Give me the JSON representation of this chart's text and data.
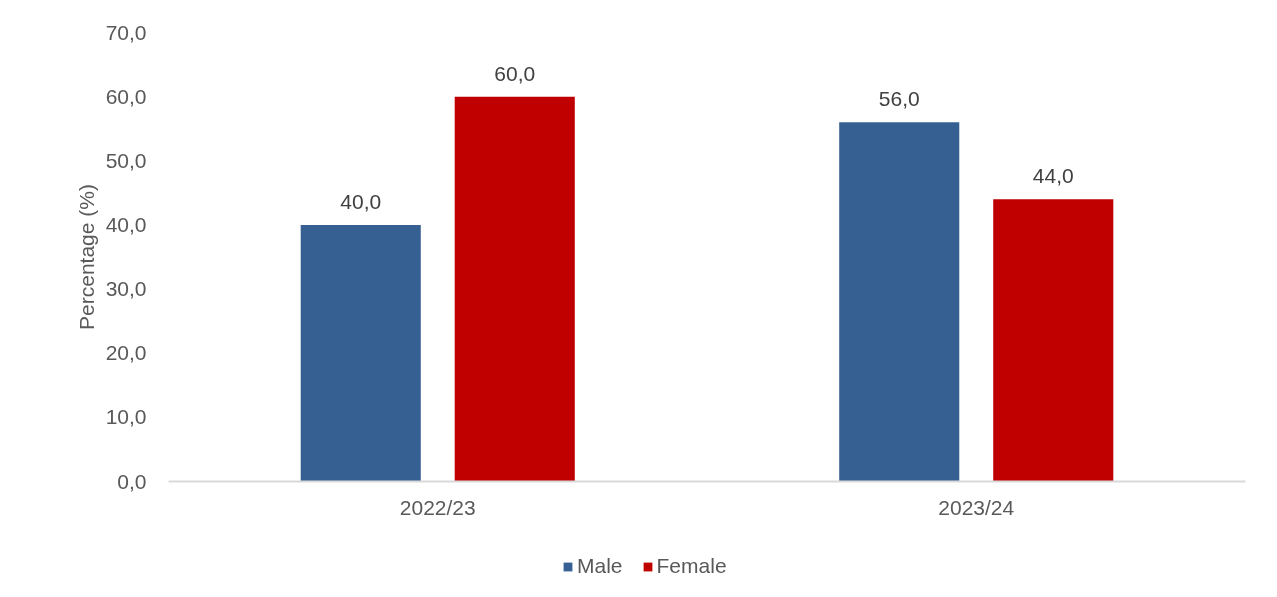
{
  "chart_data": {
    "type": "bar",
    "ylabel": "Percentage (%)",
    "categories": [
      "2022/23",
      "2023/24"
    ],
    "series": [
      {
        "name": "Male",
        "color": "#376092",
        "values": [
          40,
          56
        ],
        "value_labels": [
          "40,0",
          "56,0"
        ]
      },
      {
        "name": "Female",
        "color": "#c00000",
        "values": [
          60,
          44
        ],
        "value_labels": [
          "60,0",
          "44,0"
        ]
      }
    ],
    "ylim": [
      0,
      70
    ],
    "yticks": [
      {
        "value": 0,
        "label": "0,0"
      },
      {
        "value": 10,
        "label": "10,0"
      },
      {
        "value": 20,
        "label": "20,0"
      },
      {
        "value": 30,
        "label": "30,0"
      },
      {
        "value": 40,
        "label": "40,0"
      },
      {
        "value": 50,
        "label": "50,0"
      },
      {
        "value": 60,
        "label": "60,0"
      },
      {
        "value": 70,
        "label": "70,0"
      }
    ],
    "grid": false,
    "legend": "bottom"
  }
}
